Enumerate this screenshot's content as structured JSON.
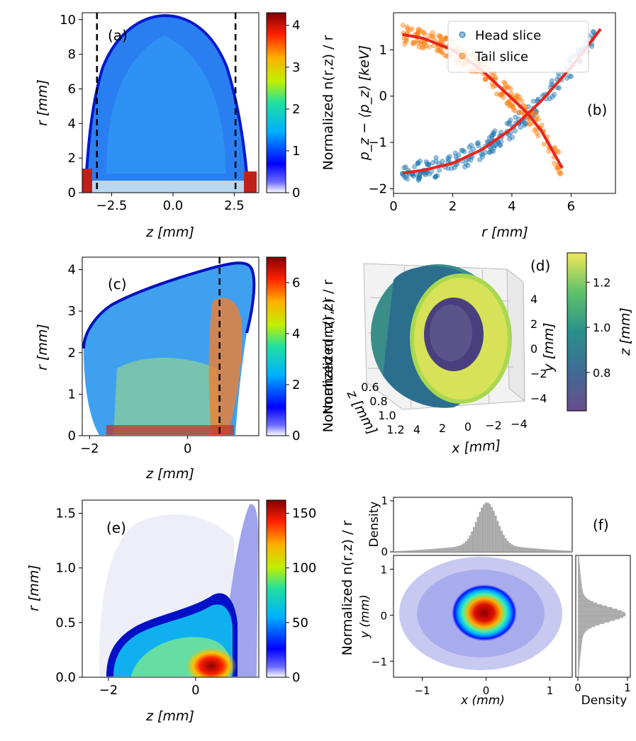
{
  "figure": {
    "panels": {
      "a": "(a)",
      "b": "(b)",
      "c": "(c)",
      "d": "(d)",
      "e": "(e)",
      "f": "(f)"
    },
    "colorbar_label": "Normalized n(r,z) / r"
  },
  "chart_data": [
    {
      "id": "a",
      "type": "heatmap",
      "title": "",
      "xlabel": "z [mm]",
      "ylabel": "r [mm]",
      "xlim": [
        -3.7,
        3.5
      ],
      "ylim": [
        0,
        10.4
      ],
      "xticks": [
        -2.5,
        0.0,
        2.5
      ],
      "xtick_labels": [
        "−2.5",
        "0.0",
        "2.5"
      ],
      "yticks": [
        0,
        2,
        4,
        6,
        8,
        10
      ],
      "ytick_labels": [
        "0",
        "2",
        "4",
        "6",
        "8",
        "10"
      ],
      "dashed_vlines": [
        -3.1,
        2.55
      ],
      "colorbar": {
        "label": "Normalized n(r,z) / r",
        "ticks": [
          0,
          1,
          2,
          3,
          4
        ],
        "range": [
          0,
          4.3
        ],
        "cmap": "jet"
      }
    },
    {
      "id": "b",
      "type": "scatter",
      "title": "",
      "xlabel": "r [mm]",
      "ylabel": "p_z − ⟨p_z⟩ [keV]",
      "xlim": [
        0,
        7.5
      ],
      "ylim": [
        -2.1,
        1.8
      ],
      "xticks": [
        0,
        2,
        4,
        6
      ],
      "xtick_labels": [
        "0",
        "2",
        "4",
        "6"
      ],
      "yticks": [
        -2,
        -1,
        0,
        1
      ],
      "ytick_labels": [
        "−2",
        "−1",
        "0",
        "1"
      ],
      "legend": "top-right",
      "series": [
        {
          "name": "Head slice",
          "color": "#1f77b4",
          "x": [
            0.3,
            1.0,
            2.0,
            3.0,
            4.0,
            5.0,
            6.0,
            7.0
          ],
          "y": [
            -1.66,
            -1.6,
            -1.45,
            -1.15,
            -0.7,
            -0.1,
            0.62,
            1.45
          ]
        },
        {
          "name": "Tail slice",
          "color": "#ff7f0e",
          "x": [
            0.3,
            1.0,
            2.0,
            3.0,
            4.0,
            4.5,
            5.0,
            5.7
          ],
          "y": [
            1.33,
            1.25,
            1.0,
            0.55,
            -0.05,
            -0.35,
            -0.75,
            -1.55
          ]
        }
      ],
      "fit_color": "#e8241c"
    },
    {
      "id": "c",
      "type": "heatmap",
      "title": "",
      "xlabel": "z [mm]",
      "ylabel": "r [mm]",
      "xlim": [
        -2.15,
        1.45
      ],
      "ylim": [
        0,
        4.3
      ],
      "xticks": [
        -2,
        0
      ],
      "xtick_labels": [
        "−2",
        "0"
      ],
      "yticks": [
        0,
        1,
        2,
        3,
        4
      ],
      "ytick_labels": [
        "0",
        "1",
        "2",
        "3",
        "4"
      ],
      "dashed_vlines": [
        0.65
      ],
      "colorbar": {
        "label": "Normalized n(r,z) / r",
        "ticks": [
          0,
          2,
          4,
          6
        ],
        "range": [
          0,
          7
        ],
        "cmap": "jet"
      }
    },
    {
      "id": "d",
      "type": "scatter",
      "title": "",
      "xlabel": "x [mm]",
      "ylabel": "z [mm]",
      "zlabel": "y [mm]",
      "x_ticks": [
        "4",
        "2",
        "0",
        "−2",
        "−4"
      ],
      "z_ticks": [
        "0.6",
        "0.8",
        "1.0",
        "1.2"
      ],
      "y_ticks": [
        "4",
        "2",
        "0",
        "−2",
        "−4"
      ],
      "colorbar": {
        "label": "z [mm]",
        "ticks": [
          0.8,
          1.0,
          1.2
        ],
        "tick_labels": [
          "0.8",
          "1.0",
          "1.2"
        ],
        "range": [
          0.63,
          1.33
        ],
        "cmap": "viridis"
      }
    },
    {
      "id": "e",
      "type": "heatmap",
      "title": "",
      "xlabel": "z [mm]",
      "ylabel": "r [mm]",
      "xlim": [
        -2.6,
        1.45
      ],
      "ylim": [
        0,
        1.62
      ],
      "xticks": [
        -2,
        0
      ],
      "xtick_labels": [
        "−2",
        "0"
      ],
      "yticks": [
        0.0,
        0.5,
        1.0,
        1.5
      ],
      "ytick_labels": [
        "0.0",
        "0.5",
        "1.0",
        "1.5"
      ],
      "colorbar": {
        "label": "Normalized n(r,z) / r",
        "ticks": [
          0,
          50,
          100,
          150
        ],
        "range": [
          0,
          162
        ],
        "cmap": "jet"
      }
    },
    {
      "id": "f",
      "type": "heatmap",
      "title": "",
      "xlabel": "x (mm)",
      "ylabel": "y (mm)",
      "xlim": [
        -1.45,
        1.35
      ],
      "ylim": [
        -1.35,
        1.3
      ],
      "xticks": [
        -1,
        0,
        1
      ],
      "xtick_labels": [
        "−1",
        "0",
        "1"
      ],
      "yticks": [
        -1,
        0,
        1
      ],
      "ytick_labels": [
        "−1",
        "0",
        "1"
      ],
      "top_hist": {
        "ylabel": "Density",
        "yticks": [
          "0",
          "1"
        ]
      },
      "side_hist": {
        "xlabel": "Density",
        "xticks": [
          "0",
          "1"
        ]
      }
    }
  ]
}
